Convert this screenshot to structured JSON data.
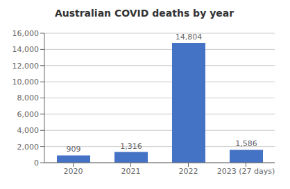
{
  "chart_data": {
    "type": "bar",
    "title": "Australian COVID deaths by year",
    "categories": [
      "2020",
      "2021",
      "2022",
      "2023 (27 days)"
    ],
    "values": [
      909,
      1316,
      14804,
      1586
    ],
    "value_labels": [
      "909",
      "1,316",
      "14,804",
      "1,586"
    ],
    "color": "#4472C4",
    "ylim": [
      0,
      16000
    ],
    "yticks": [
      0,
      {
        "value": 2000,
        "label": "2,000"
      },
      {
        "value": 4000,
        "label": "4,000"
      },
      {
        "value": 6000,
        "label": "6,000"
      },
      {
        "value": 8000,
        "label": "8,000"
      },
      {
        "value": 10000,
        "label": "10,000"
      },
      {
        "value": 12000,
        "label": "12,000"
      },
      {
        "value": 14000,
        "label": "14,000"
      },
      {
        "value": 16000,
        "label": "16,000"
      }
    ],
    "grid": true,
    "data_labels": true
  }
}
